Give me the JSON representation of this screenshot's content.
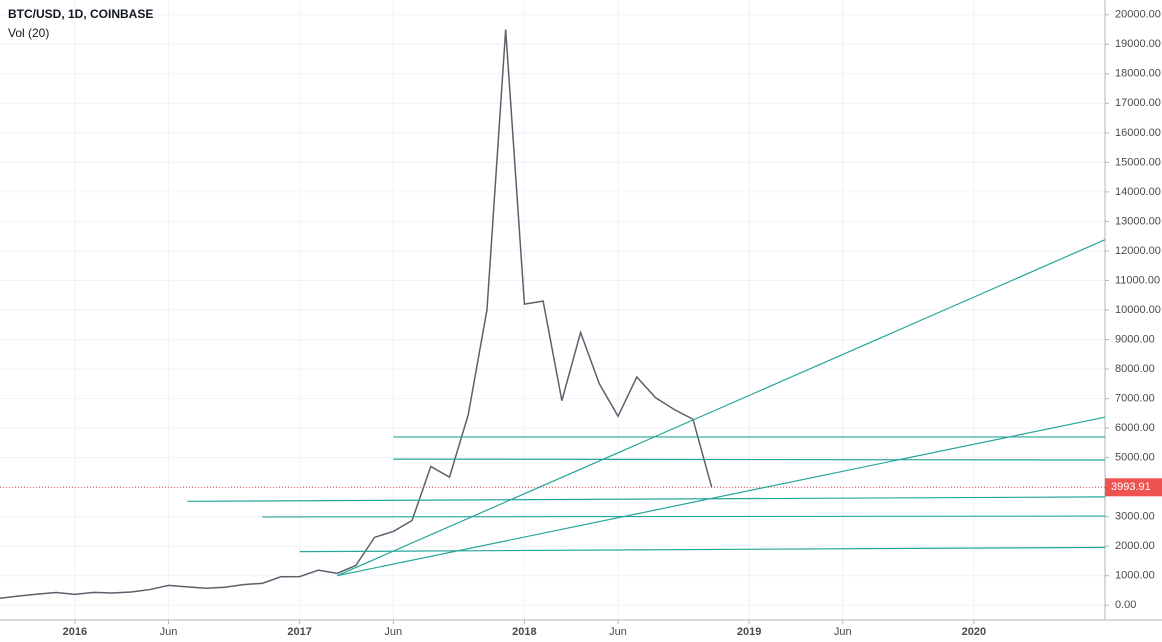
{
  "chart_data": {
    "type": "line",
    "title": "BTC/USD, 1D, COINBASE",
    "subtitle": "Vol (20)",
    "x": [
      "2015-09",
      "2015-10",
      "2015-11",
      "2015-12",
      "2016-01",
      "2016-02",
      "2016-03",
      "2016-04",
      "2016-05",
      "2016-06",
      "2016-07",
      "2016-08",
      "2016-09",
      "2016-10",
      "2016-11",
      "2016-12",
      "2017-01",
      "2017-02",
      "2017-03",
      "2017-04",
      "2017-05",
      "2017-06",
      "2017-07",
      "2017-08",
      "2017-09",
      "2017-10",
      "2017-11",
      "2017-12",
      "2018-01",
      "2018-02",
      "2018-03",
      "2018-04",
      "2018-05",
      "2018-06",
      "2018-07",
      "2018-08",
      "2018-09",
      "2018-10",
      "2018-11"
    ],
    "series": [
      {
        "name": "BTC/USD",
        "color": "#5d606b",
        "values": [
          236,
          314,
          377,
          430,
          369,
          437,
          416,
          448,
          531,
          673,
          624,
          575,
          609,
          700,
          742,
          963,
          970,
          1190,
          1080,
          1350,
          2300,
          2500,
          2870,
          4700,
          4340,
          6450,
          10000,
          19500,
          10200,
          10300,
          6930,
          9240,
          7500,
          6400,
          7730,
          7030,
          6630,
          6300,
          3993.91
        ]
      }
    ],
    "last_price": {
      "value": 3993.91,
      "label": "3993.91",
      "color": "#ef5350"
    },
    "trendlines": [
      {
        "x": [
          "2017-06",
          "2020-08"
        ],
        "y": [
          5700,
          5700
        ]
      },
      {
        "x": [
          "2017-06",
          "2020-08"
        ],
        "y": [
          4950,
          4920
        ]
      },
      {
        "x": [
          "2016-07",
          "2020-08"
        ],
        "y": [
          3520,
          3670
        ]
      },
      {
        "x": [
          "2016-11",
          "2020-08"
        ],
        "y": [
          2990,
          3020
        ]
      },
      {
        "x": [
          "2017-01",
          "2020-08"
        ],
        "y": [
          1815,
          1960
        ]
      },
      {
        "x": [
          "2017-03",
          "2020-08"
        ],
        "y": [
          1000,
          12380
        ]
      },
      {
        "x": [
          "2017-03",
          "2020-08"
        ],
        "y": [
          1000,
          6370
        ]
      }
    ],
    "trendline_color": "#26a69a",
    "xlim": [
      "2015-09",
      "2020-08"
    ],
    "xticks": [
      {
        "value": "2016-01",
        "label": "2016"
      },
      {
        "value": "2016-06",
        "label": "Jun"
      },
      {
        "value": "2017-01",
        "label": "2017"
      },
      {
        "value": "2017-06",
        "label": "Jun"
      },
      {
        "value": "2018-01",
        "label": "2018"
      },
      {
        "value": "2018-06",
        "label": "Jun"
      },
      {
        "value": "2019-01",
        "label": "2019"
      },
      {
        "value": "2019-06",
        "label": "Jun"
      },
      {
        "value": "2020-01",
        "label": "2020"
      }
    ],
    "ylim": [
      -500,
      20500
    ],
    "yticks": [
      {
        "value": 0,
        "label": "0.00"
      },
      {
        "value": 1000,
        "label": "1000.00"
      },
      {
        "value": 2000,
        "label": "2000.00"
      },
      {
        "value": 3000,
        "label": "3000.00"
      },
      {
        "value": 4000,
        "label": "4000.00"
      },
      {
        "value": 5000,
        "label": "5000.00"
      },
      {
        "value": 6000,
        "label": "6000.00"
      },
      {
        "value": 7000,
        "label": "7000.00"
      },
      {
        "value": 8000,
        "label": "8000.00"
      },
      {
        "value": 9000,
        "label": "9000.00"
      },
      {
        "value": 10000,
        "label": "10000.00"
      },
      {
        "value": 11000,
        "label": "11000.00"
      },
      {
        "value": 12000,
        "label": "12000.00"
      },
      {
        "value": 13000,
        "label": "13000.00"
      },
      {
        "value": 14000,
        "label": "14000.00"
      },
      {
        "value": 15000,
        "label": "15000.00"
      },
      {
        "value": 16000,
        "label": "16000.00"
      },
      {
        "value": 17000,
        "label": "17000.00"
      },
      {
        "value": 18000,
        "label": "18000.00"
      },
      {
        "value": 19000,
        "label": "19000.00"
      },
      {
        "value": 20000,
        "label": "20000.00"
      }
    ],
    "grid": true
  }
}
